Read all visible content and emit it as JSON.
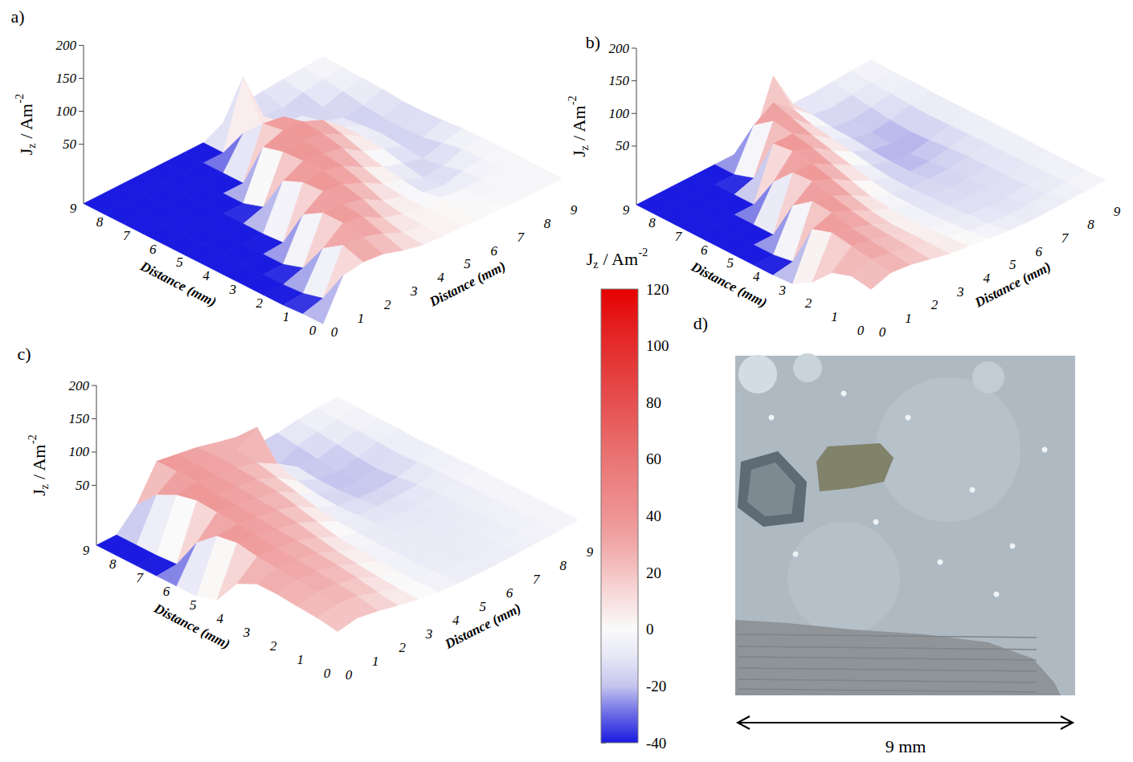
{
  "chart_data": [
    {
      "type": "surface3d",
      "label": "a)",
      "xlabel": "Distance (mm)",
      "ylabel": "Distance (mm)",
      "zlabel": "Jz / Am-2",
      "x": [
        0,
        0.75,
        1.5,
        2.25,
        3,
        3.75,
        4.5,
        5.25,
        6,
        6.75,
        7.5,
        8.25,
        9
      ],
      "y": [
        0,
        0.75,
        1.5,
        2.25,
        3,
        3.75,
        4.5,
        5.25,
        6,
        6.75,
        7.5,
        8.25,
        9
      ],
      "z": [
        [
          -38,
          20,
          25,
          22,
          12,
          5,
          3,
          2,
          0,
          0,
          -2,
          -2,
          -2
        ],
        [
          -38,
          -30,
          35,
          32,
          22,
          8,
          4,
          2,
          0,
          -2,
          -2,
          -2,
          -2
        ],
        [
          -40,
          -38,
          15,
          38,
          32,
          15,
          5,
          2,
          0,
          -3,
          -3,
          -2,
          -2
        ],
        [
          -40,
          -40,
          -30,
          38,
          36,
          28,
          10,
          2,
          -8,
          -14,
          -6,
          -3,
          -2
        ],
        [
          -40,
          -40,
          -40,
          20,
          40,
          35,
          22,
          5,
          -5,
          -16,
          -14,
          -4,
          -2
        ],
        [
          -40,
          -40,
          -40,
          -38,
          38,
          40,
          32,
          15,
          0,
          -10,
          -18,
          -10,
          -3
        ],
        [
          -40,
          -40,
          -40,
          -40,
          25,
          40,
          36,
          28,
          8,
          -3,
          -15,
          -17,
          -6
        ],
        [
          -40,
          -40,
          -40,
          -40,
          -30,
          38,
          40,
          35,
          18,
          0,
          -12,
          -18,
          -8
        ],
        [
          -40,
          -40,
          -40,
          -40,
          -40,
          30,
          40,
          38,
          25,
          0,
          -14,
          -17,
          -8
        ],
        [
          -40,
          -40,
          -40,
          -40,
          -40,
          -40,
          35,
          30,
          5,
          -8,
          -18,
          -14,
          -5
        ],
        [
          -40,
          -40,
          -40,
          -40,
          -40,
          -40,
          5,
          -5,
          -10,
          -15,
          -17,
          -8,
          -4
        ],
        [
          -40,
          -40,
          -40,
          -40,
          -40,
          -40,
          -40,
          60,
          -15,
          -18,
          -10,
          -5,
          -3
        ],
        [
          -40,
          -40,
          -40,
          -40,
          -40,
          -40,
          -40,
          -25,
          -10,
          -8,
          -5,
          -3,
          -2
        ]
      ],
      "xlim": [
        0,
        9
      ],
      "xticks": [
        0,
        1,
        2,
        3,
        4,
        5,
        6,
        7,
        8,
        9
      ],
      "ylim": [
        0,
        9
      ],
      "yticks": [
        0,
        1,
        2,
        3,
        4,
        5,
        6,
        7,
        8,
        9
      ],
      "zlim": [
        -40,
        200
      ],
      "zticks": [
        50,
        100,
        150,
        200
      ]
    },
    {
      "type": "surface3d",
      "label": "b)",
      "xlabel": "Distance (mm)",
      "ylabel": "Distance (mm)",
      "zlabel": "Jz / Am-2",
      "x": [
        0,
        0.75,
        1.5,
        2.25,
        3,
        3.75,
        4.5,
        5.25,
        6,
        6.75,
        7.5,
        8.25,
        9
      ],
      "y": [
        0,
        0.75,
        1.5,
        2.25,
        3,
        3.75,
        4.5,
        5.25,
        6,
        6.75,
        7.5,
        8.25,
        9
      ],
      "z": [
        [
          15,
          25,
          22,
          15,
          8,
          4,
          0,
          -3,
          -5,
          -5,
          -4,
          -3,
          -2
        ],
        [
          20,
          30,
          25,
          18,
          8,
          2,
          -4,
          -8,
          -10,
          -10,
          -8,
          -5,
          -3
        ],
        [
          10,
          35,
          28,
          20,
          8,
          0,
          -6,
          -10,
          -12,
          -12,
          -10,
          -7,
          -3
        ],
        [
          -20,
          40,
          32,
          22,
          8,
          -2,
          -8,
          -12,
          -13,
          -13,
          -12,
          -8,
          -3
        ],
        [
          -38,
          30,
          40,
          28,
          12,
          0,
          -8,
          -13,
          -14,
          -14,
          -12,
          -8,
          -3
        ],
        [
          -40,
          -35,
          42,
          35,
          20,
          3,
          -8,
          -14,
          -16,
          -16,
          -13,
          -8,
          -3
        ],
        [
          -40,
          -40,
          20,
          42,
          30,
          12,
          -3,
          -14,
          -20,
          -20,
          -15,
          -9,
          -3
        ],
        [
          -40,
          -40,
          -40,
          40,
          38,
          22,
          5,
          -10,
          -20,
          -24,
          -18,
          -10,
          -4
        ],
        [
          -40,
          -40,
          -40,
          10,
          42,
          32,
          12,
          -5,
          -18,
          -24,
          -20,
          -11,
          -4
        ],
        [
          -40,
          -40,
          -40,
          -40,
          38,
          38,
          20,
          0,
          -15,
          -22,
          -18,
          -10,
          -4
        ],
        [
          -40,
          -40,
          -40,
          -40,
          -30,
          42,
          30,
          5,
          -14,
          -18,
          -14,
          -8,
          -3
        ],
        [
          -40,
          -40,
          -40,
          -40,
          -40,
          20,
          40,
          15,
          -10,
          -14,
          -10,
          -6,
          -3
        ],
        [
          -40,
          -40,
          -40,
          -40,
          -40,
          -40,
          -30,
          50,
          -8,
          -8,
          -6,
          -4,
          -2
        ]
      ],
      "xlim": [
        0,
        9
      ],
      "xticks": [
        0,
        1,
        2,
        3,
        4,
        5,
        6,
        7,
        8,
        9
      ],
      "ylim": [
        0,
        9
      ],
      "yticks": [
        0,
        1,
        2,
        3,
        4,
        5,
        6,
        7,
        8,
        9
      ],
      "zlim": [
        -40,
        200
      ],
      "zticks": [
        50,
        100,
        150,
        200
      ]
    },
    {
      "type": "surface3d",
      "label": "c)",
      "xlabel": "Distance (mm)",
      "ylabel": "Distance (mm)",
      "zlabel": "Jz / Am-2",
      "x": [
        0,
        0.75,
        1.5,
        2.25,
        3,
        3.75,
        4.5,
        5.25,
        6,
        6.75,
        7.5,
        8.25,
        9
      ],
      "y": [
        0,
        0.75,
        1.5,
        2.25,
        3,
        3.75,
        4.5,
        5.25,
        6,
        6.75,
        7.5,
        8.25,
        9
      ],
      "z": [
        [
          15,
          20,
          15,
          8,
          2,
          -3,
          -5,
          -6,
          -6,
          -5,
          -4,
          -3,
          -2
        ],
        [
          20,
          25,
          22,
          12,
          3,
          -3,
          -6,
          -7,
          -7,
          -6,
          -5,
          -4,
          -2
        ],
        [
          22,
          28,
          25,
          18,
          5,
          -3,
          -7,
          -8,
          -8,
          -7,
          -6,
          -4,
          -2
        ],
        [
          25,
          30,
          28,
          22,
          8,
          -2,
          -7,
          -8,
          -8,
          -8,
          -7,
          -4,
          -2
        ],
        [
          25,
          32,
          30,
          25,
          12,
          0,
          -7,
          -8,
          -9,
          -9,
          -7,
          -4,
          -2
        ],
        [
          10,
          35,
          32,
          28,
          18,
          3,
          -6,
          -9,
          -10,
          -10,
          -8,
          -5,
          -2
        ],
        [
          -30,
          40,
          35,
          30,
          24,
          10,
          -4,
          -10,
          -12,
          -12,
          -10,
          -6,
          -3
        ],
        [
          -40,
          35,
          38,
          32,
          28,
          18,
          0,
          -12,
          -16,
          -18,
          -15,
          -8,
          -3
        ],
        [
          -40,
          10,
          40,
          35,
          30,
          25,
          8,
          -10,
          -18,
          -22,
          -18,
          -10,
          -4
        ],
        [
          -40,
          -38,
          42,
          36,
          32,
          28,
          15,
          -5,
          -18,
          -22,
          -16,
          -8,
          -3
        ],
        [
          -40,
          -40,
          35,
          40,
          34,
          30,
          22,
          5,
          -15,
          -18,
          -12,
          -6,
          -3
        ],
        [
          -40,
          -40,
          20,
          40,
          35,
          32,
          25,
          45,
          -30,
          -14,
          -8,
          -5,
          -2
        ],
        [
          -40,
          -40,
          -10,
          40,
          35,
          30,
          22,
          15,
          -12,
          -10,
          -6,
          -3,
          -2
        ]
      ],
      "xlim": [
        0,
        9
      ],
      "xticks": [
        0,
        1,
        2,
        3,
        4,
        5,
        6,
        7,
        8,
        9
      ],
      "ylim": [
        0,
        9
      ],
      "yticks": [
        0,
        1,
        2,
        3,
        4,
        5,
        6,
        7,
        8,
        9
      ],
      "zlim": [
        -40,
        200
      ],
      "zticks": [
        50,
        100,
        150,
        200
      ]
    }
  ],
  "colorbar": {
    "title": "Jz / Am-2",
    "range": [
      -40,
      120
    ],
    "ticks": [
      -40,
      -20,
      0,
      20,
      40,
      60,
      80,
      100,
      120
    ]
  },
  "photo": {
    "label": "d)",
    "scale_bar": "9 mm"
  }
}
